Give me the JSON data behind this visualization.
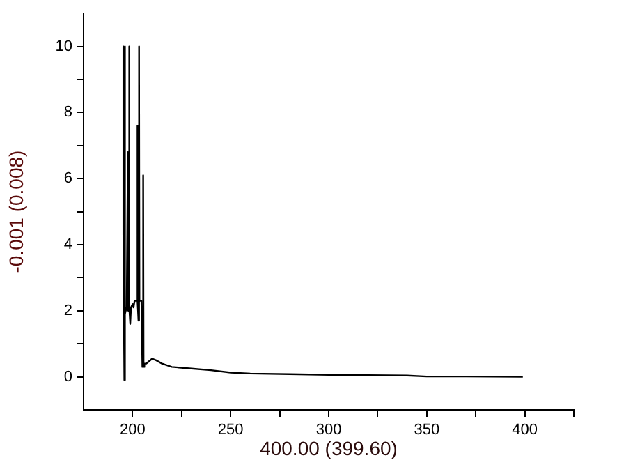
{
  "chart_data": {
    "type": "line",
    "xlabel": "400.00 (399.60)",
    "ylabel": "-0.001 (0.008)",
    "xlim": [
      175,
      425
    ],
    "ylim": [
      -1,
      11
    ],
    "xticks": [
      200,
      {
        "value": 225,
        "label": null
      },
      250,
      {
        "value": 275,
        "label": null
      },
      300,
      {
        "value": 325,
        "label": null
      },
      350,
      {
        "value": 375,
        "label": null
      },
      400,
      {
        "value": 425,
        "label": null
      }
    ],
    "yticks": [
      0,
      {
        "value": 1,
        "label": null
      },
      2,
      {
        "value": 3,
        "label": null
      },
      4,
      {
        "value": 5,
        "label": null
      },
      6,
      {
        "value": 7,
        "label": null
      },
      8,
      {
        "value": 9,
        "label": null
      },
      10
    ],
    "grid": false,
    "legend": false,
    "marker": "none",
    "line_style": "solid",
    "series": [
      {
        "color": "#000000",
        "x": [
          195,
          195.2,
          195.4,
          195.8,
          196,
          196.2,
          197,
          197.6,
          197.8,
          198.2,
          198.4,
          198.8,
          199.2,
          200,
          200.5,
          201,
          202,
          202.4,
          202.6,
          203,
          203.3,
          203.5,
          204.5,
          205,
          205.4,
          205.6,
          206,
          207,
          208,
          210,
          212,
          215,
          220,
          230,
          240,
          250,
          260,
          280,
          300,
          320,
          340,
          350,
          370,
          399
        ],
        "values": [
          4.3,
          10,
          4.3,
          -0.1,
          10,
          1.9,
          2.1,
          6.8,
          2,
          10,
          2.1,
          1.6,
          2.1,
          2.2,
          2.1,
          2.3,
          2.3,
          7.6,
          2.3,
          1.7,
          10,
          2.3,
          2.3,
          0.3,
          6.1,
          0.3,
          0.4,
          0.4,
          0.45,
          0.55,
          0.5,
          0.4,
          0.3,
          0.25,
          0.2,
          0.13,
          0.1,
          0.08,
          0.06,
          0.05,
          0.04,
          0.01,
          0.01,
          0
        ]
      }
    ]
  }
}
